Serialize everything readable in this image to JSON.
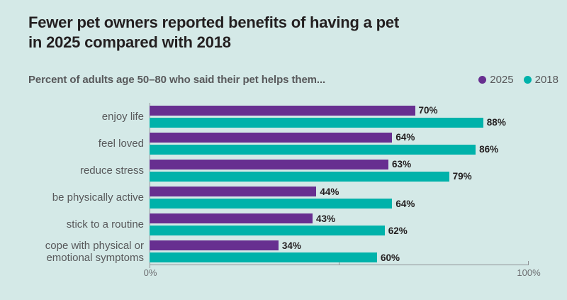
{
  "header": {
    "title_line1": "Fewer pet owners reported benefits of having a pet",
    "title_line2": "in 2025 compared with 2018",
    "subtitle": "Percent of adults age 50–80 who said their pet helps them..."
  },
  "legend": [
    {
      "label": "2025",
      "color": "#672f90"
    },
    {
      "label": "2018",
      "color": "#00b2aa"
    }
  ],
  "chart_data": {
    "type": "bar",
    "orientation": "horizontal",
    "title": "Fewer pet owners reported benefits of having a pet in 2025 compared with 2018",
    "subtitle": "Percent of adults age 50–80 who said their pet helps them...",
    "categories": [
      "enjoy life",
      "feel loved",
      "reduce stress",
      "be physically active",
      "stick to a routine",
      "cope with physical or emotional symptoms"
    ],
    "series": [
      {
        "name": "2025",
        "color": "#672f90",
        "values": [
          70,
          64,
          63,
          44,
          43,
          34
        ]
      },
      {
        "name": "2018",
        "color": "#00b2aa",
        "values": [
          88,
          86,
          79,
          64,
          62,
          60
        ]
      }
    ],
    "value_suffix": "%",
    "xlim": [
      0,
      100
    ],
    "tick_marks": [
      0,
      50,
      100
    ],
    "tick_labels": [
      {
        "position": 0,
        "text": "0%"
      },
      {
        "position": 100,
        "text": "100%"
      }
    ],
    "grid": false,
    "legend_position": "top-right",
    "colors": {
      "background": "#d4e9e7",
      "axis": "#8f9194",
      "title_text": "#231f20",
      "muted_text": "#58595b",
      "value_text": "#231f20"
    }
  }
}
